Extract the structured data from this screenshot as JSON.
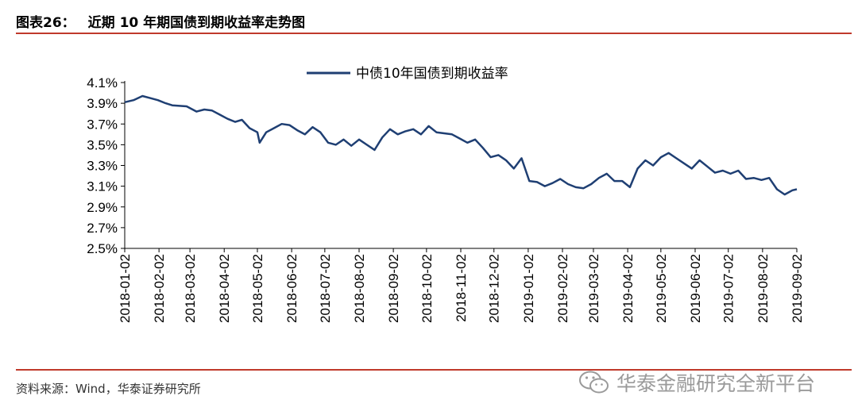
{
  "figure": {
    "number": "图表26：",
    "title": "近期 10 年期国债到期收益率走势图"
  },
  "source": "资料来源：Wind，华泰证券研究所",
  "watermark": "华泰金融研究全新平台",
  "colors": {
    "line": "#1f3f73",
    "rule": "#c0392b",
    "axis": "#000000"
  },
  "chart_data": {
    "type": "line",
    "title": "",
    "xlabel": "",
    "ylabel": "",
    "ylim": [
      2.5,
      4.1
    ],
    "yticks": [
      "2.5%",
      "2.7%",
      "2.9%",
      "3.1%",
      "3.3%",
      "3.5%",
      "3.7%",
      "3.9%",
      "4.1%"
    ],
    "xticks": [
      "2018-01-02",
      "2018-02-02",
      "2018-03-02",
      "2018-04-02",
      "2018-05-02",
      "2018-06-02",
      "2018-07-02",
      "2018-08-02",
      "2018-09-02",
      "2018-10-02",
      "2018-11-02",
      "2018-12-02",
      "2019-01-02",
      "2019-02-02",
      "2019-03-02",
      "2019-04-02",
      "2019-05-02",
      "2019-06-02",
      "2019-07-02",
      "2019-08-02",
      "2019-09-02"
    ],
    "grid": false,
    "legend": "top-center",
    "series": [
      {
        "name": "中债10年国债到期收益率",
        "x": [
          "2018-01-02",
          "2018-01-10",
          "2018-01-18",
          "2018-01-25",
          "2018-02-01",
          "2018-02-08",
          "2018-02-14",
          "2018-02-27",
          "2018-03-08",
          "2018-03-15",
          "2018-03-22",
          "2018-03-29",
          "2018-04-05",
          "2018-04-12",
          "2018-04-18",
          "2018-04-25",
          "2018-05-02",
          "2018-05-04",
          "2018-05-10",
          "2018-05-17",
          "2018-05-24",
          "2018-05-31",
          "2018-06-07",
          "2018-06-14",
          "2018-06-21",
          "2018-06-28",
          "2018-07-05",
          "2018-07-12",
          "2018-07-19",
          "2018-07-26",
          "2018-08-02",
          "2018-08-09",
          "2018-08-16",
          "2018-08-23",
          "2018-08-30",
          "2018-09-06",
          "2018-09-13",
          "2018-09-20",
          "2018-09-27",
          "2018-10-04",
          "2018-10-11",
          "2018-10-18",
          "2018-10-25",
          "2018-11-01",
          "2018-11-08",
          "2018-11-15",
          "2018-11-22",
          "2018-11-29",
          "2018-12-06",
          "2018-12-13",
          "2018-12-20",
          "2018-12-27",
          "2019-01-03",
          "2019-01-10",
          "2019-01-17",
          "2019-01-24",
          "2019-01-31",
          "2019-02-07",
          "2019-02-14",
          "2019-02-21",
          "2019-02-28",
          "2019-03-07",
          "2019-03-14",
          "2019-03-21",
          "2019-03-28",
          "2019-04-04",
          "2019-04-11",
          "2019-04-18",
          "2019-04-25",
          "2019-05-02",
          "2019-05-09",
          "2019-05-16",
          "2019-05-23",
          "2019-05-30",
          "2019-06-06",
          "2019-06-13",
          "2019-06-20",
          "2019-06-27",
          "2019-07-04",
          "2019-07-11",
          "2019-07-18",
          "2019-07-25",
          "2019-08-01",
          "2019-08-08",
          "2019-08-15",
          "2019-08-22",
          "2019-08-29",
          "2019-09-02"
        ],
        "values": [
          3.91,
          3.93,
          3.97,
          3.95,
          3.93,
          3.9,
          3.88,
          3.87,
          3.82,
          3.84,
          3.83,
          3.79,
          3.75,
          3.72,
          3.74,
          3.66,
          3.62,
          3.52,
          3.62,
          3.66,
          3.7,
          3.69,
          3.64,
          3.6,
          3.67,
          3.62,
          3.52,
          3.5,
          3.55,
          3.49,
          3.55,
          3.5,
          3.45,
          3.57,
          3.65,
          3.6,
          3.63,
          3.65,
          3.6,
          3.68,
          3.62,
          3.61,
          3.6,
          3.56,
          3.52,
          3.55,
          3.47,
          3.38,
          3.4,
          3.35,
          3.27,
          3.37,
          3.15,
          3.14,
          3.1,
          3.13,
          3.17,
          3.12,
          3.09,
          3.08,
          3.12,
          3.18,
          3.22,
          3.15,
          3.15,
          3.09,
          3.27,
          3.35,
          3.3,
          3.38,
          3.42,
          3.37,
          3.32,
          3.27,
          3.35,
          3.29,
          3.23,
          3.25,
          3.22,
          3.25,
          3.17,
          3.18,
          3.16,
          3.18,
          3.07,
          3.02,
          3.06,
          3.07
        ]
      }
    ]
  }
}
